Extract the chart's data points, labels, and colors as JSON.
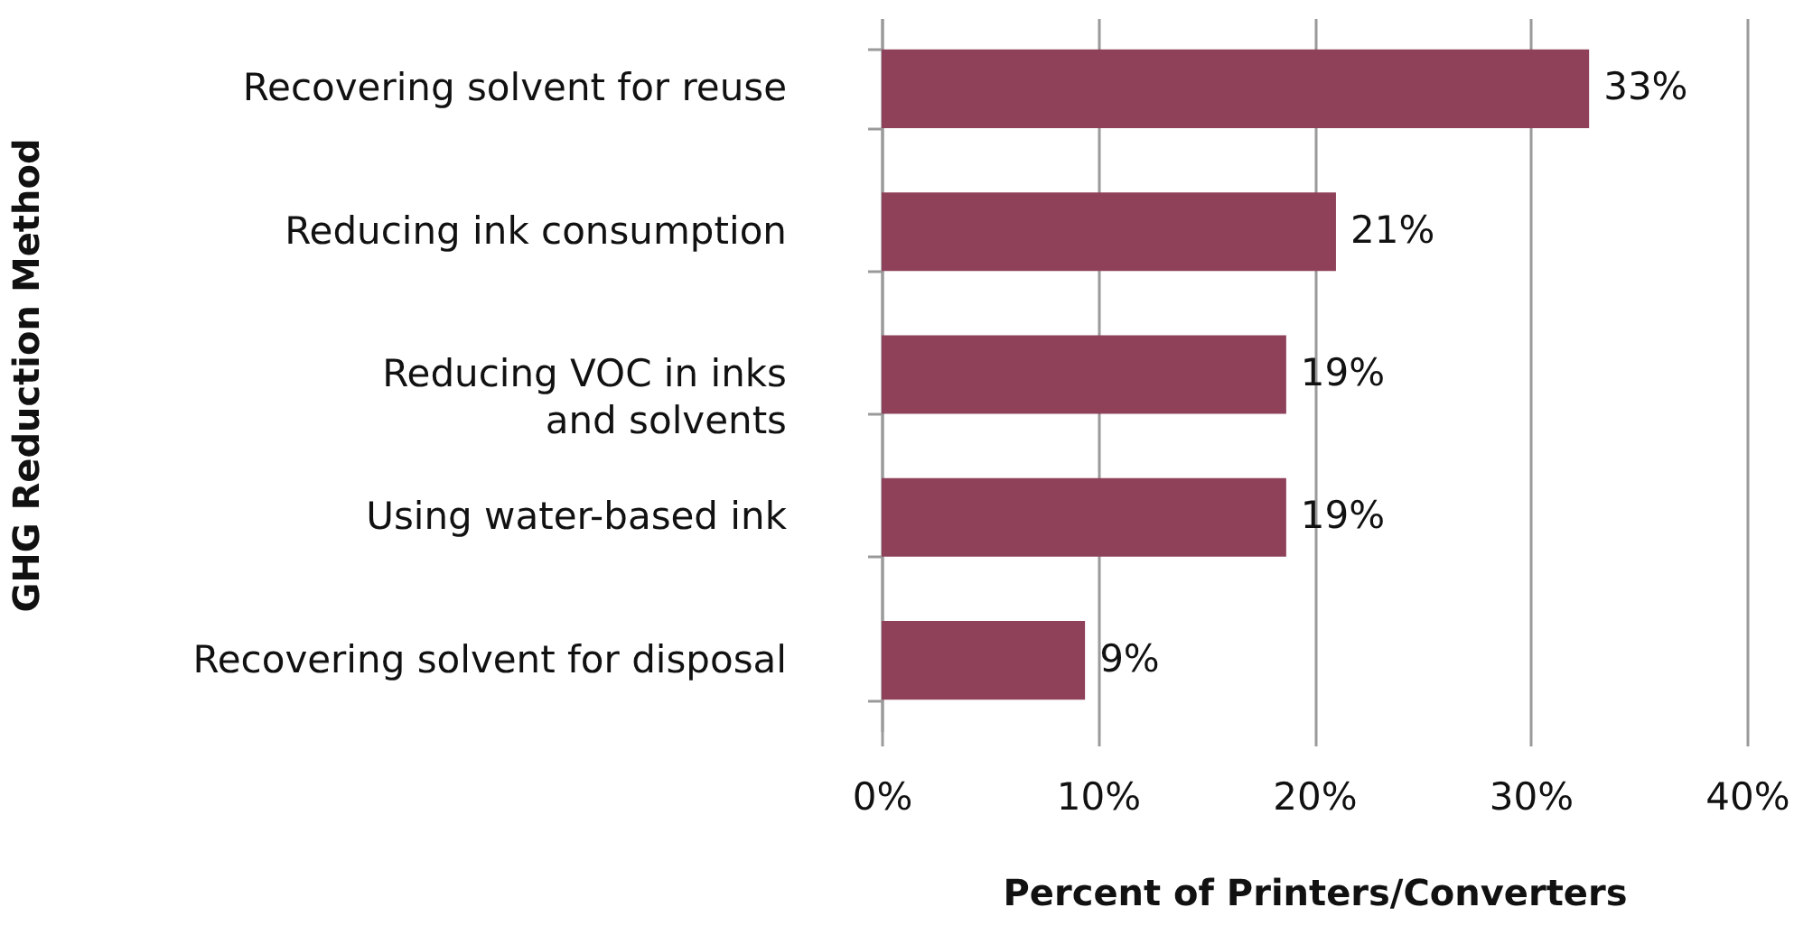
{
  "chart_data": {
    "type": "bar",
    "orientation": "horizontal",
    "xlabel": "Percent of Printers/Converters",
    "ylabel": "GHG Reduction Method",
    "categories": [
      "Recovering solvent for reuse",
      "Reducing ink consumption",
      "Reducing VOC in inks and solvents",
      "Using water-based ink",
      "Recovering solvent for disposal"
    ],
    "values": [
      32.7,
      21,
      18.7,
      18.7,
      9.4
    ],
    "value_labels": [
      "33%",
      "21%",
      "19%",
      "19%",
      "9%"
    ],
    "color": "#8e4159",
    "xlim": [
      0,
      40
    ],
    "xticks": [
      {
        "value": 0,
        "label": "0%"
      },
      {
        "value": 10,
        "label": "10%"
      },
      {
        "value": 20,
        "label": "20%"
      },
      {
        "value": 30,
        "label": "30%"
      },
      {
        "value": 40,
        "label": "40%"
      }
    ],
    "grid": "x"
  }
}
